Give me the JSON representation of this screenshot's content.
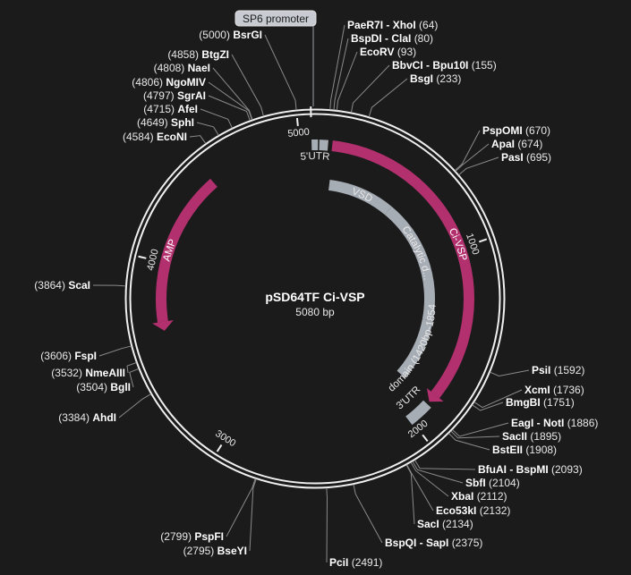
{
  "plasmid": {
    "name": "pSD64TF Ci-VSP",
    "size_label": "5080 bp",
    "length": 5080
  },
  "colors": {
    "background": "#1b1b1c",
    "backbone": "#f0f0f0",
    "magenta": "#b3306e",
    "grey": "#a7adb5",
    "label_bg": "#c8ccd2",
    "leader": "#8a8a8a"
  },
  "ticks": [
    "5000",
    "1000",
    "2000",
    "3000",
    "4000"
  ],
  "tick_positions": [
    5000,
    1000,
    2000,
    3000,
    4000
  ],
  "sp6_promoter": {
    "label": "SP6 promoter",
    "start": 5062,
    "end": 5080
  },
  "features": [
    {
      "label": "Ci-VSP",
      "start": 90,
      "end": 1864,
      "direction": "cw",
      "color": "magenta",
      "track": "outer"
    },
    {
      "label": "AMP",
      "start": 3640,
      "end": 4500,
      "direction": "ccw",
      "color": "magenta",
      "track": "outer"
    },
    {
      "label": "VSD",
      "start": 100,
      "end": 560,
      "direction": "none",
      "color": "grey",
      "track": "mid"
    },
    {
      "label": "Catalytic d...",
      "start": 560,
      "end": 1420,
      "direction": "none",
      "color": "grey",
      "track": "mid"
    },
    {
      "label": "C2 domain (1420bp-1854bp)",
      "start": 1420,
      "end": 1854,
      "direction": "none",
      "color": "grey",
      "track": "mid"
    },
    {
      "label": "5'UTR",
      "start": 0,
      "end": 84,
      "direction": "none",
      "color": "grey",
      "track": "outer"
    },
    {
      "label": "3'UTR",
      "start": 1880,
      "end": 2010,
      "direction": "none",
      "color": "grey",
      "track": "outer"
    }
  ],
  "sites": [
    {
      "id": "bsrgi",
      "name": "BsrGI",
      "pos": "(5000)",
      "bp": 5000,
      "side": "left"
    },
    {
      "id": "btgzi",
      "name": "BtgZI",
      "pos": "(4858)",
      "bp": 4858,
      "side": "left"
    },
    {
      "id": "naei",
      "name": "NaeI",
      "pos": "(4808)",
      "bp": 4808,
      "side": "left"
    },
    {
      "id": "ngomiv",
      "name": "NgoMIV",
      "pos": "(4806)",
      "bp": 4806,
      "side": "left"
    },
    {
      "id": "sgrai",
      "name": "SgrAI",
      "pos": "(4797)",
      "bp": 4797,
      "side": "left"
    },
    {
      "id": "afei",
      "name": "AfeI",
      "pos": "(4715)",
      "bp": 4715,
      "side": "left"
    },
    {
      "id": "sphi",
      "name": "SphI",
      "pos": "(4649)",
      "bp": 4649,
      "side": "left"
    },
    {
      "id": "econi",
      "name": "EcoNI",
      "pos": "(4584)",
      "bp": 4584,
      "side": "left"
    },
    {
      "id": "paer7i-xhoi",
      "name": "PaeR7I - XhoI",
      "pos": "(64)",
      "bp": 64,
      "side": "right"
    },
    {
      "id": "bspdi-clai",
      "name": "BspDI - ClaI",
      "pos": "(80)",
      "bp": 80,
      "side": "right"
    },
    {
      "id": "ecorv",
      "name": "EcoRV",
      "pos": "(93)",
      "bp": 93,
      "side": "right"
    },
    {
      "id": "bbvci-bpu10i",
      "name": "BbvCI - Bpu10I",
      "pos": "(155)",
      "bp": 155,
      "side": "right"
    },
    {
      "id": "bsgi",
      "name": "BsgI",
      "pos": "(233)",
      "bp": 233,
      "side": "right"
    },
    {
      "id": "pspomi",
      "name": "PspOMI",
      "pos": "(670)",
      "bp": 670,
      "side": "right"
    },
    {
      "id": "apai",
      "name": "ApaI",
      "pos": "(674)",
      "bp": 674,
      "side": "right"
    },
    {
      "id": "pasi",
      "name": "PasI",
      "pos": "(695)",
      "bp": 695,
      "side": "right"
    },
    {
      "id": "psii",
      "name": "PsiI",
      "pos": "(1592)",
      "bp": 1592,
      "side": "right"
    },
    {
      "id": "xcmi",
      "name": "XcmI",
      "pos": "(1736)",
      "bp": 1736,
      "side": "right"
    },
    {
      "id": "bmgbi",
      "name": "BmgBI",
      "pos": "(1751)",
      "bp": 1751,
      "side": "right"
    },
    {
      "id": "eagi-noti",
      "name": "EagI - NotI",
      "pos": "(1886)",
      "bp": 1886,
      "side": "right"
    },
    {
      "id": "sacii",
      "name": "SacII",
      "pos": "(1895)",
      "bp": 1895,
      "side": "right"
    },
    {
      "id": "bsteii",
      "name": "BstEII",
      "pos": "(1908)",
      "bp": 1908,
      "side": "right"
    },
    {
      "id": "bfuai-bspmi",
      "name": "BfuAI - BspMI",
      "pos": "(2093)",
      "bp": 2093,
      "side": "right"
    },
    {
      "id": "sbfi",
      "name": "SbfI",
      "pos": "(2104)",
      "bp": 2104,
      "side": "right"
    },
    {
      "id": "xbai",
      "name": "XbaI",
      "pos": "(2112)",
      "bp": 2112,
      "side": "right"
    },
    {
      "id": "eco53ki",
      "name": "Eco53kI",
      "pos": "(2132)",
      "bp": 2132,
      "side": "right"
    },
    {
      "id": "saci",
      "name": "SacI",
      "pos": "(2134)",
      "bp": 2134,
      "side": "right"
    },
    {
      "id": "bspqi-sapi",
      "name": "BspQI - SapI",
      "pos": "(2375)",
      "bp": 2375,
      "side": "right"
    },
    {
      "id": "pcii",
      "name": "PciI",
      "pos": "(2491)",
      "bp": 2491,
      "side": "right"
    },
    {
      "id": "pspfi",
      "name": "PspFI",
      "pos": "(2799)",
      "bp": 2799,
      "side": "left"
    },
    {
      "id": "bseyi",
      "name": "BseYI",
      "pos": "(2795)",
      "bp": 2795,
      "side": "left"
    },
    {
      "id": "ahdi",
      "name": "AhdI",
      "pos": "(3384)",
      "bp": 3384,
      "side": "left"
    },
    {
      "id": "bgli",
      "name": "BglI",
      "pos": "(3504)",
      "bp": 3504,
      "side": "left"
    },
    {
      "id": "nmeaiii",
      "name": "NmeAIII",
      "pos": "(3532)",
      "bp": 3532,
      "side": "left"
    },
    {
      "id": "fspi",
      "name": "FspI",
      "pos": "(3606)",
      "bp": 3606,
      "side": "left"
    },
    {
      "id": "scai",
      "name": "ScaI",
      "pos": "(3864)",
      "bp": 3864,
      "side": "left"
    }
  ]
}
